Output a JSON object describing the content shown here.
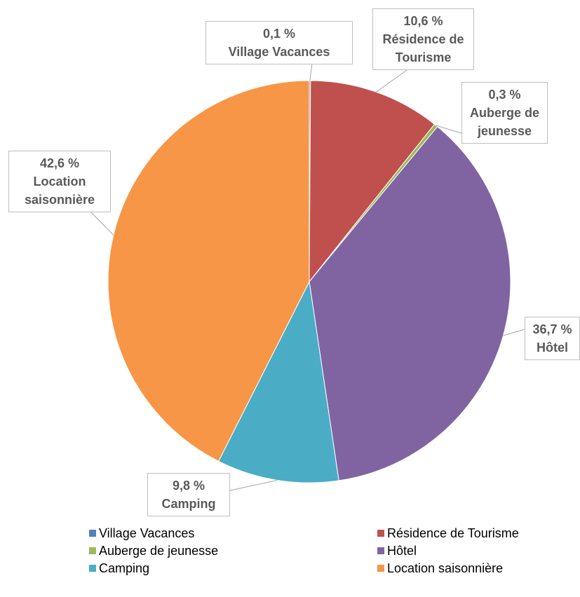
{
  "chart_data": {
    "type": "pie",
    "categories": [
      "Village Vacances",
      "Résidence de Tourisme",
      "Auberge de jeunesse",
      "Hôtel",
      "Camping",
      "Location saisonnière"
    ],
    "values": [
      0.1,
      10.6,
      0.3,
      36.7,
      9.8,
      42.6
    ],
    "value_labels": [
      "0,1 %",
      "10,6 %",
      "0,3 %",
      "36,7 %",
      "9,8 %",
      "42,6 %"
    ],
    "colors": [
      "#4f81bd",
      "#c0504d",
      "#9bbb59",
      "#8064a2",
      "#4bacc6",
      "#f79646"
    ],
    "legend": "bottom"
  }
}
